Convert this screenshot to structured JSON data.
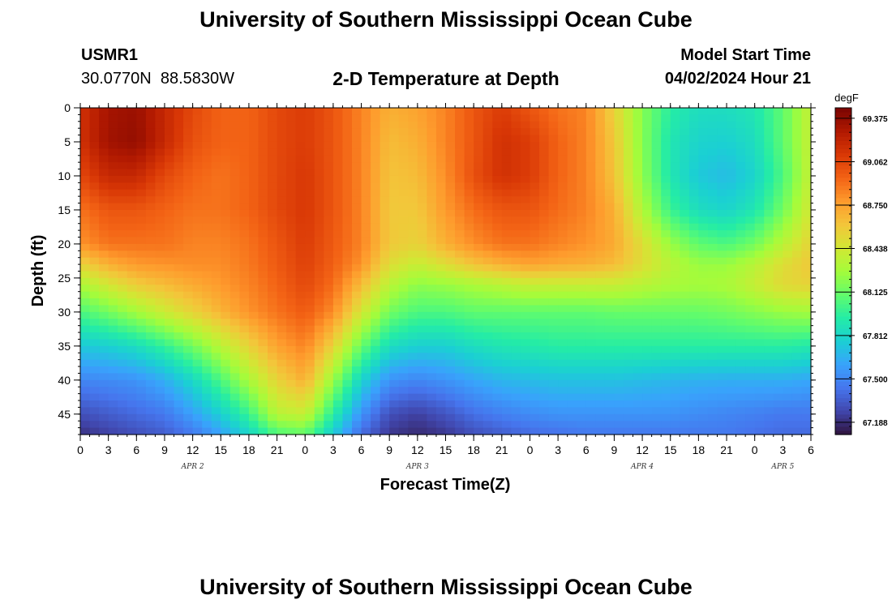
{
  "page": {
    "title": "University of Southern Mississippi Ocean Cube",
    "footer_title": "University of Southern Mississippi Ocean Cube",
    "station_id": "USMR1",
    "station_coords": "30.0770N  88.5830W",
    "subtitle": "2-D Temperature at Depth",
    "model_start_label": "Model Start Time",
    "model_start_value": "04/02/2024 Hour 21"
  },
  "chart_data": {
    "type": "heatmap",
    "title": "2-D Temperature at Depth",
    "xlabel": "Forecast Time(Z)",
    "ylabel": "Depth (ft)",
    "x_range_hours": [
      0,
      78
    ],
    "x_ticks": [
      {
        "h": 0,
        "label": "0"
      },
      {
        "h": 3,
        "label": "3"
      },
      {
        "h": 6,
        "label": "6"
      },
      {
        "h": 9,
        "label": "9"
      },
      {
        "h": 12,
        "label": "12"
      },
      {
        "h": 15,
        "label": "15"
      },
      {
        "h": 18,
        "label": "18"
      },
      {
        "h": 21,
        "label": "21"
      },
      {
        "h": 24,
        "label": "0"
      },
      {
        "h": 27,
        "label": "3"
      },
      {
        "h": 30,
        "label": "6"
      },
      {
        "h": 33,
        "label": "9"
      },
      {
        "h": 36,
        "label": "12"
      },
      {
        "h": 39,
        "label": "15"
      },
      {
        "h": 42,
        "label": "18"
      },
      {
        "h": 45,
        "label": "21"
      },
      {
        "h": 48,
        "label": "0"
      },
      {
        "h": 51,
        "label": "3"
      },
      {
        "h": 54,
        "label": "6"
      },
      {
        "h": 57,
        "label": "9"
      },
      {
        "h": 60,
        "label": "12"
      },
      {
        "h": 63,
        "label": "15"
      },
      {
        "h": 66,
        "label": "18"
      },
      {
        "h": 69,
        "label": "21"
      },
      {
        "h": 72,
        "label": "0"
      },
      {
        "h": 75,
        "label": "3"
      },
      {
        "h": 78,
        "label": "6"
      }
    ],
    "date_labels": [
      {
        "h": 12,
        "label": "APR 2"
      },
      {
        "h": 36,
        "label": "APR 3"
      },
      {
        "h": 60,
        "label": "APR 4"
      },
      {
        "h": 75,
        "label": "APR 5"
      }
    ],
    "ylim": [
      0,
      48
    ],
    "y_inverted": true,
    "y_ticks": [
      0,
      5,
      10,
      15,
      20,
      25,
      30,
      35,
      40,
      45
    ],
    "colorbar": {
      "units": "degF",
      "min": 67.1,
      "max": 69.45,
      "tick_values": [
        69.375,
        69.062,
        68.75,
        68.438,
        68.125,
        67.812,
        67.5,
        67.188
      ],
      "tick_labels": [
        "69.375",
        "69.062",
        "68.750",
        "68.438",
        "68.125",
        "67.812",
        "67.500",
        "67.188"
      ],
      "palette": [
        "#30123b",
        "#4146ac",
        "#4675ed",
        "#39a2fc",
        "#1bcfd4",
        "#24eca6",
        "#61fc6c",
        "#a4fc3b",
        "#d1e834",
        "#f3c63a",
        "#fe9b2d",
        "#f36315",
        "#d93806",
        "#b11901",
        "#7a0402"
      ]
    },
    "grid": {
      "x_hours": [
        0,
        3,
        6,
        9,
        12,
        15,
        18,
        21,
        24,
        27,
        30,
        33,
        36,
        39,
        42,
        45,
        48,
        51,
        54,
        57,
        60,
        63,
        66,
        69,
        72,
        75,
        78
      ],
      "depths_ft": [
        0,
        5,
        10,
        15,
        20,
        23,
        26,
        30,
        35,
        40,
        45,
        48
      ],
      "values_degF": [
        [
          69.15,
          69.32,
          69.35,
          69.2,
          69.05,
          68.95,
          68.95,
          69.05,
          69.1,
          69.0,
          68.85,
          68.7,
          68.75,
          68.85,
          69.0,
          69.1,
          69.0,
          68.9,
          68.85,
          68.55,
          68.2,
          67.95,
          67.85,
          67.85,
          67.9,
          68.1,
          68.4
        ],
        [
          69.15,
          69.33,
          69.37,
          69.2,
          69.02,
          68.95,
          68.95,
          69.05,
          69.1,
          69.0,
          68.85,
          68.65,
          68.7,
          68.85,
          69.0,
          69.15,
          69.1,
          68.95,
          68.85,
          68.6,
          68.2,
          67.9,
          67.8,
          67.78,
          67.85,
          68.1,
          68.4
        ],
        [
          69.05,
          69.2,
          69.2,
          69.05,
          68.95,
          68.9,
          68.95,
          69.05,
          69.12,
          69.0,
          68.85,
          68.62,
          68.65,
          68.82,
          69.02,
          69.15,
          69.1,
          68.95,
          68.85,
          68.62,
          68.22,
          67.9,
          67.75,
          67.7,
          67.8,
          68.05,
          68.4
        ],
        [
          68.9,
          69.0,
          69.0,
          68.95,
          68.9,
          68.9,
          68.95,
          69.05,
          69.12,
          69.0,
          68.85,
          68.6,
          68.6,
          68.78,
          68.92,
          69.0,
          69.0,
          68.92,
          68.85,
          68.7,
          68.32,
          68.0,
          67.85,
          67.8,
          67.9,
          68.15,
          68.45
        ],
        [
          68.8,
          68.9,
          68.9,
          68.9,
          68.85,
          68.85,
          68.9,
          69.0,
          69.1,
          68.98,
          68.85,
          68.6,
          68.55,
          68.7,
          68.82,
          68.9,
          68.9,
          68.85,
          68.8,
          68.72,
          68.5,
          68.25,
          68.1,
          68.05,
          68.15,
          68.35,
          68.55
        ],
        [
          68.55,
          68.7,
          68.78,
          68.8,
          68.82,
          68.82,
          68.88,
          68.98,
          69.08,
          68.96,
          68.8,
          68.5,
          68.4,
          68.5,
          68.62,
          68.7,
          68.75,
          68.72,
          68.7,
          68.65,
          68.5,
          68.35,
          68.25,
          68.25,
          68.35,
          68.5,
          68.6
        ],
        [
          68.3,
          68.45,
          68.58,
          68.65,
          68.72,
          68.78,
          68.85,
          68.95,
          69.05,
          68.92,
          68.65,
          68.35,
          68.22,
          68.25,
          68.3,
          68.35,
          68.4,
          68.4,
          68.4,
          68.4,
          68.35,
          68.3,
          68.28,
          68.3,
          68.4,
          68.52,
          68.55
        ],
        [
          68.05,
          68.15,
          68.28,
          68.42,
          68.55,
          68.68,
          68.8,
          68.9,
          68.98,
          68.82,
          68.45,
          68.15,
          68.05,
          68.05,
          68.1,
          68.1,
          68.1,
          68.1,
          68.1,
          68.12,
          68.12,
          68.12,
          68.12,
          68.15,
          68.2,
          68.25,
          68.28
        ],
        [
          67.75,
          67.78,
          67.85,
          67.98,
          68.15,
          68.35,
          68.55,
          68.75,
          68.85,
          68.55,
          68.12,
          67.85,
          67.78,
          67.78,
          67.85,
          67.9,
          67.92,
          67.95,
          67.95,
          67.95,
          67.95,
          67.95,
          67.95,
          67.95,
          67.95,
          67.95,
          67.92
        ],
        [
          67.5,
          67.52,
          67.55,
          67.65,
          67.82,
          68.05,
          68.3,
          68.55,
          68.7,
          68.25,
          67.8,
          67.55,
          67.5,
          67.55,
          67.62,
          67.68,
          67.7,
          67.72,
          67.72,
          67.72,
          67.7,
          67.68,
          67.66,
          67.65,
          67.65,
          67.65,
          67.62
        ],
        [
          67.3,
          67.35,
          67.4,
          67.45,
          67.6,
          67.78,
          68.0,
          68.35,
          68.4,
          67.95,
          67.55,
          67.3,
          67.25,
          67.32,
          67.42,
          67.48,
          67.52,
          67.55,
          67.55,
          67.55,
          67.55,
          67.55,
          67.52,
          67.5,
          67.48,
          67.45,
          67.45
        ],
        [
          67.2,
          67.25,
          67.3,
          67.35,
          67.45,
          67.6,
          67.8,
          68.05,
          68.1,
          67.75,
          67.4,
          67.22,
          67.18,
          67.22,
          67.3,
          67.35,
          67.4,
          67.42,
          67.45,
          67.45,
          67.45,
          67.45,
          67.45,
          67.45,
          67.42,
          67.4,
          67.4
        ]
      ]
    }
  }
}
